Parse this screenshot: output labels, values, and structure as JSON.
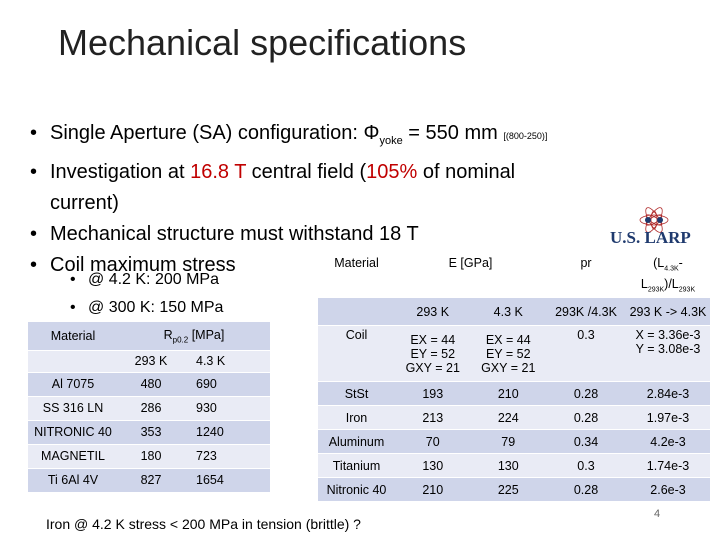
{
  "slide": {
    "title": "Mechanical specifications",
    "bullets": {
      "b1_text": "Single Aperture (SA) configuration: Φ",
      "b1_sub": "yoke",
      "b1_value": " = 550 mm ",
      "b1_note": "[(800-250)]",
      "b2_prefix": "Investigation at ",
      "b2_field": "16.8 T",
      "b2_middle": " central field (",
      "b2_percent": "105%",
      "b2_suffix": " of nominal",
      "b2_cont": "current)",
      "b3": "Mechanical structure must withstand 18 T",
      "b4": "Coil maximum stress"
    },
    "sub_bullets": [
      "@ 4.2 K: 200 MPa",
      "@ 300 K: 150 MPa"
    ],
    "logo_text": "U.S. LARP",
    "footnote": "Iron @ 4.2 K stress < 200 MPa in tension (brittle) ?",
    "page_number": "4"
  },
  "table_strength": {
    "header_material": "Material",
    "header_rp": "R",
    "header_rp_sub": "p0.2",
    "header_rp_unit": " [MPa]",
    "col_293": "293 K",
    "col_43": "4.3 K",
    "rows": [
      {
        "material": "Al 7075",
        "t293": "480",
        "t43": "690"
      },
      {
        "material": "SS 316 LN",
        "t293": "286",
        "t43": "930"
      },
      {
        "material": "NITRONIC 40",
        "t293": "353",
        "t43": "1240"
      },
      {
        "material": "MAGNETIL",
        "t293": "180",
        "t43": "723"
      },
      {
        "material": "Ti 6Al 4V",
        "t293": "827",
        "t43": "1654"
      }
    ]
  },
  "table_properties": {
    "header_material": "Material",
    "header_e": "E [GPa]",
    "header_pr": "pr",
    "header_ratio_a": "(L",
    "header_ratio_a_sub": "4.3K",
    "header_ratio_b": "-",
    "header_ratio_c": "L",
    "header_ratio_c_sub": "293K",
    "header_ratio_d": ")/L",
    "header_ratio_d_sub": "293K",
    "sub_293": "293 K",
    "sub_43": "4.3 K",
    "sub_pr": "293K /4.3K",
    "sub_ratio": "293 K -> 4.3K",
    "coil": {
      "material": "Coil",
      "e293": [
        "EX = 44",
        "EY = 52",
        "GXY = 21"
      ],
      "e43": [
        "EX = 44",
        "EY = 52",
        "GXY = 21"
      ],
      "pr": "0.3",
      "ratio": [
        "X = 3.36e-3",
        "Y = 3.08e-3"
      ]
    },
    "rows": [
      {
        "material": "StSt",
        "e293": "193",
        "e43": "210",
        "pr": "0.28",
        "ratio": "2.84e-3"
      },
      {
        "material": "Iron",
        "e293": "213",
        "e43": "224",
        "pr": "0.28",
        "ratio": "1.97e-3"
      },
      {
        "material": "Aluminum",
        "e293": "70",
        "e43": "79",
        "pr": "0.34",
        "ratio": "4.2e-3"
      },
      {
        "material": "Titanium",
        "e293": "130",
        "e43": "130",
        "pr": "0.3",
        "ratio": "1.74e-3"
      },
      {
        "material": "Nitronic 40",
        "e293": "210",
        "e43": "225",
        "pr": "0.28",
        "ratio": "2.6e-3"
      }
    ]
  },
  "colors": {
    "accent_red": "#c00000",
    "table_dark": "#cfd5ea",
    "table_light": "#e9ebf5",
    "logo_blue": "#1f3a6e",
    "logo_red": "#b02a2a"
  }
}
